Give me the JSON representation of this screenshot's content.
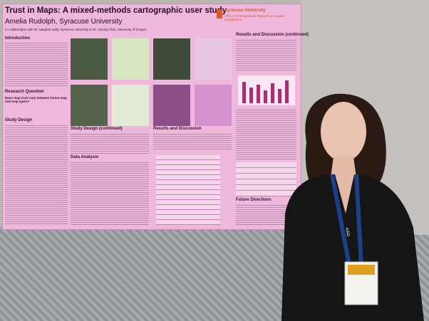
{
  "poster": {
    "title": "Trust in Maps: A mixed-methods cartographic user study",
    "author": "Amelia Rudolph, Syracuse University",
    "collaborators": "In collaboration with Dr. Meghan Kelly, Syracuse University & Dr. Carolyn Fish, University of Oregon",
    "institution": "Syracuse University",
    "office": "Office of Undergraduate Research & Creative Engagement",
    "sections": [
      "Introduction",
      "Research Question",
      "Study Design",
      "Study Design (continued)",
      "Data Analysis",
      "Results and Discussion",
      "Results and Discussion (continued)",
      "Future Directions"
    ],
    "research_question": "Does map trust vary between forms map and map types?"
  },
  "badge": {
    "lanyard": "AAG"
  }
}
